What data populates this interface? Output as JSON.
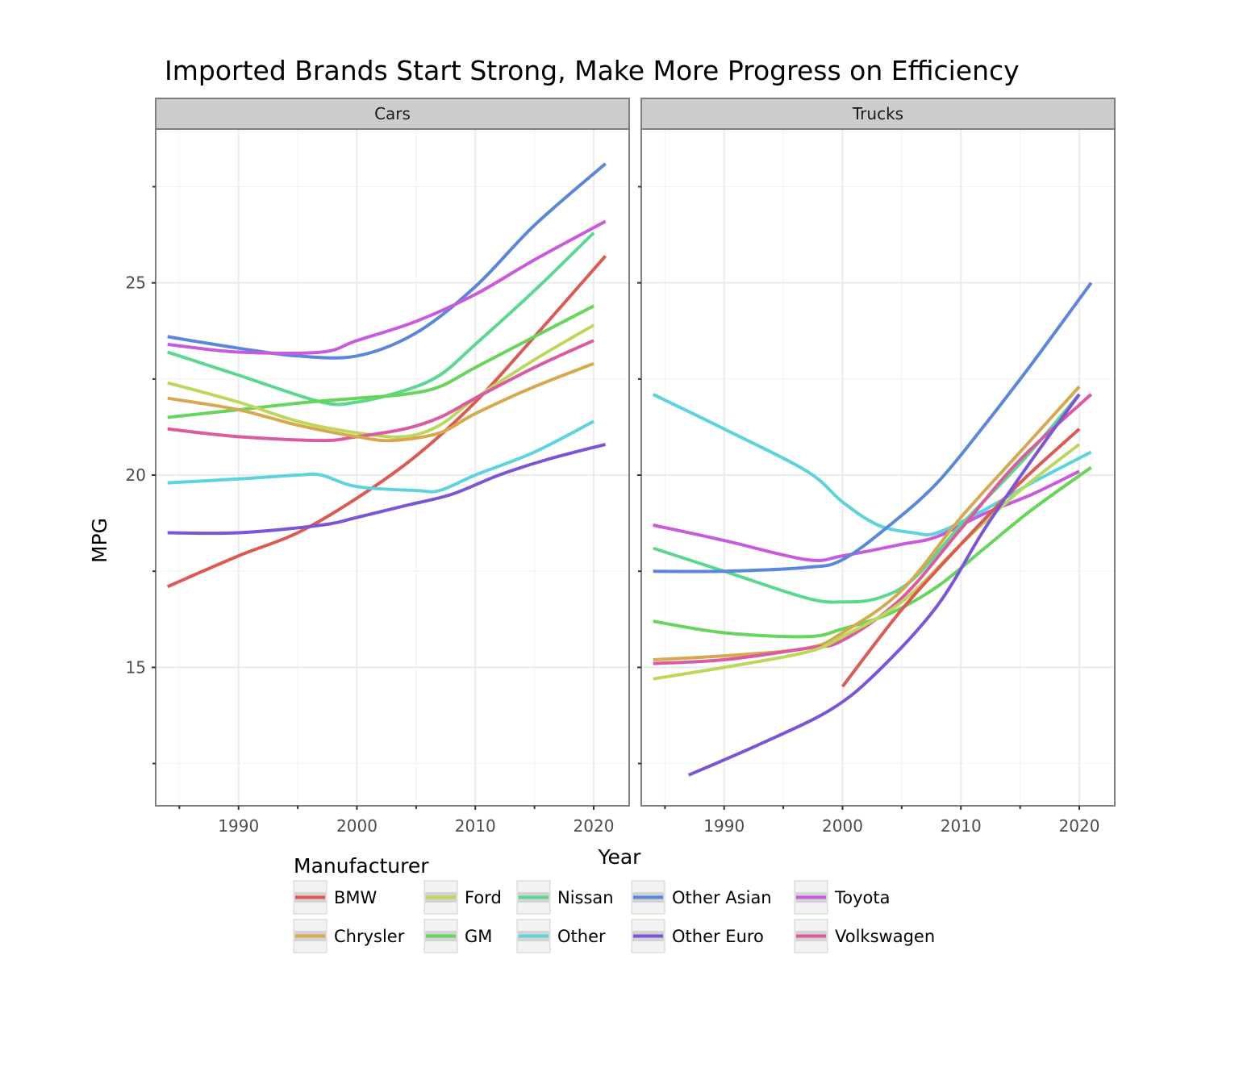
{
  "chart_data": {
    "type": "line",
    "title": "Imported Brands Start Strong, Make More Progress on Efficiency",
    "xlabel": "Year",
    "ylabel": "MPG",
    "xlim": [
      1983,
      2023
    ],
    "ylim": [
      11.4,
      29.0
    ],
    "x_ticks": [
      1990,
      2000,
      2010,
      2020
    ],
    "y_ticks": [
      15,
      20,
      25
    ],
    "grid": true,
    "facets": [
      "Cars",
      "Trucks"
    ],
    "legend": {
      "title": "Manufacturer",
      "placement": "bottom",
      "entries": [
        {
          "name": "BMW",
          "color": "#dc5a52"
        },
        {
          "name": "Chrysler",
          "color": "#d7a94f"
        },
        {
          "name": "Ford",
          "color": "#bcd85c"
        },
        {
          "name": "GM",
          "color": "#66d55a"
        },
        {
          "name": "Nissan",
          "color": "#5ad890"
        },
        {
          "name": "Other",
          "color": "#5cd3dd"
        },
        {
          "name": "Other Asian",
          "color": "#5a86dc"
        },
        {
          "name": "Other Euro",
          "color": "#7b55d8"
        },
        {
          "name": "Toyota",
          "color": "#c85bdb"
        },
        {
          "name": "Volkswagen",
          "color": "#dc5aa0"
        }
      ]
    },
    "panels": [
      {
        "name": "Cars",
        "series": [
          {
            "name": "Other Asian",
            "x": [
              1984,
              1990,
              1995,
              2000,
              2005,
              2010,
              2015,
              2021
            ],
            "y": [
              23.6,
              23.3,
              23.1,
              23.1,
              23.7,
              24.9,
              26.5,
              28.1
            ]
          },
          {
            "name": "Toyota",
            "x": [
              1984,
              1990,
              1997,
              2000,
              2005,
              2010,
              2015,
              2021
            ],
            "y": [
              23.4,
              23.2,
              23.2,
              23.5,
              24.0,
              24.7,
              25.6,
              26.6
            ]
          },
          {
            "name": "Nissan",
            "x": [
              1984,
              1990,
              1997,
              2000,
              2004,
              2007,
              2010,
              2015,
              2020
            ],
            "y": [
              23.2,
              22.6,
              21.9,
              21.9,
              22.2,
              22.6,
              23.4,
              24.8,
              26.3
            ]
          },
          {
            "name": "BMW",
            "x": [
              1984,
              1990,
              1995,
              2000,
              2005,
              2010,
              2015,
              2021
            ],
            "y": [
              17.1,
              17.9,
              18.5,
              19.4,
              20.5,
              21.9,
              23.6,
              25.7
            ]
          },
          {
            "name": "GM",
            "x": [
              1984,
              1990,
              1996,
              2000,
              2004,
              2007,
              2010,
              2015,
              2020
            ],
            "y": [
              21.5,
              21.7,
              21.9,
              22.0,
              22.1,
              22.3,
              22.8,
              23.6,
              24.4
            ]
          },
          {
            "name": "Ford",
            "x": [
              1984,
              1990,
              1995,
              2000,
              2004,
              2007,
              2010,
              2015,
              2020
            ],
            "y": [
              22.4,
              21.9,
              21.4,
              21.1,
              21.0,
              21.3,
              22.0,
              23.0,
              23.9
            ]
          },
          {
            "name": "Volkswagen",
            "x": [
              1984,
              1990,
              1997,
              2000,
              2004,
              2007,
              2010,
              2015,
              2020
            ],
            "y": [
              21.2,
              21.0,
              20.9,
              21.0,
              21.2,
              21.5,
              22.0,
              22.8,
              23.5
            ]
          },
          {
            "name": "Chrysler",
            "x": [
              1984,
              1990,
              1995,
              2000,
              2003,
              2007,
              2010,
              2015,
              2020
            ],
            "y": [
              22.0,
              21.7,
              21.3,
              21.0,
              20.9,
              21.1,
              21.6,
              22.3,
              22.9
            ]
          },
          {
            "name": "Other",
            "x": [
              1984,
              1990,
              1995,
              1997,
              2000,
              2005,
              2007,
              2010,
              2015,
              2020
            ],
            "y": [
              19.8,
              19.9,
              20.0,
              20.0,
              19.7,
              19.6,
              19.6,
              20.0,
              20.6,
              21.4
            ]
          },
          {
            "name": "Other Euro",
            "x": [
              1984,
              1990,
              1997,
              2000,
              2004,
              2008,
              2012,
              2016,
              2021
            ],
            "y": [
              18.5,
              18.5,
              18.7,
              18.9,
              19.2,
              19.5,
              20.0,
              20.4,
              20.8
            ]
          }
        ]
      },
      {
        "name": "Trucks",
        "series": [
          {
            "name": "Other",
            "x": [
              1984,
              1990,
              1997,
              2000,
              2003,
              2006,
              2008,
              2012,
              2016,
              2021
            ],
            "y": [
              22.1,
              21.2,
              20.1,
              19.3,
              18.7,
              18.5,
              18.5,
              19.1,
              19.8,
              20.6
            ]
          },
          {
            "name": "Toyota",
            "x": [
              1984,
              1990,
              1997,
              2000,
              2005,
              2008,
              2012,
              2016,
              2020
            ],
            "y": [
              18.7,
              18.3,
              17.8,
              17.9,
              18.2,
              18.4,
              19.0,
              19.5,
              20.1
            ]
          },
          {
            "name": "Nissan",
            "x": [
              1984,
              1990,
              1997,
              2000,
              2003,
              2006,
              2010,
              2015,
              2020
            ],
            "y": [
              18.1,
              17.5,
              16.8,
              16.7,
              16.8,
              17.3,
              18.7,
              20.3,
              22.1
            ]
          },
          {
            "name": "Other Asian",
            "x": [
              1984,
              1990,
              1997,
              2000,
              2004,
              2008,
              2012,
              2016,
              2021
            ],
            "y": [
              17.5,
              17.5,
              17.6,
              17.8,
              18.7,
              19.8,
              21.3,
              22.9,
              25.0
            ]
          },
          {
            "name": "GM",
            "x": [
              1984,
              1990,
              1997,
              2000,
              2004,
              2008,
              2012,
              2016,
              2021
            ],
            "y": [
              16.2,
              15.9,
              15.8,
              16.0,
              16.4,
              17.1,
              18.1,
              19.1,
              20.2
            ]
          },
          {
            "name": "Chrysler",
            "x": [
              1984,
              1990,
              1997,
              2000,
              2005,
              2010,
              2015,
              2020
            ],
            "y": [
              15.2,
              15.3,
              15.5,
              15.9,
              17.0,
              18.9,
              20.6,
              22.3
            ]
          },
          {
            "name": "Volkswagen",
            "x": [
              1984,
              1990,
              1997,
              2000,
              2005,
              2010,
              2015,
              2021
            ],
            "y": [
              15.1,
              15.2,
              15.5,
              15.7,
              16.8,
              18.6,
              20.4,
              22.1
            ]
          },
          {
            "name": "Ford",
            "x": [
              1984,
              1990,
              1997,
              2000,
              2005,
              2010,
              2015,
              2020
            ],
            "y": [
              14.7,
              15.0,
              15.4,
              15.8,
              16.7,
              18.2,
              19.6,
              20.8
            ]
          },
          {
            "name": "BMW",
            "x": [
              2000,
              2005,
              2010,
              2015,
              2020
            ],
            "y": [
              14.5,
              16.5,
              18.2,
              19.8,
              21.2
            ]
          },
          {
            "name": "Other Euro",
            "x": [
              1987,
              1993,
              1999,
              2003,
              2008,
              2012,
              2016,
              2020
            ],
            "y": [
              12.2,
              13.0,
              13.9,
              14.9,
              16.6,
              18.6,
              20.4,
              22.1
            ]
          }
        ]
      }
    ]
  }
}
